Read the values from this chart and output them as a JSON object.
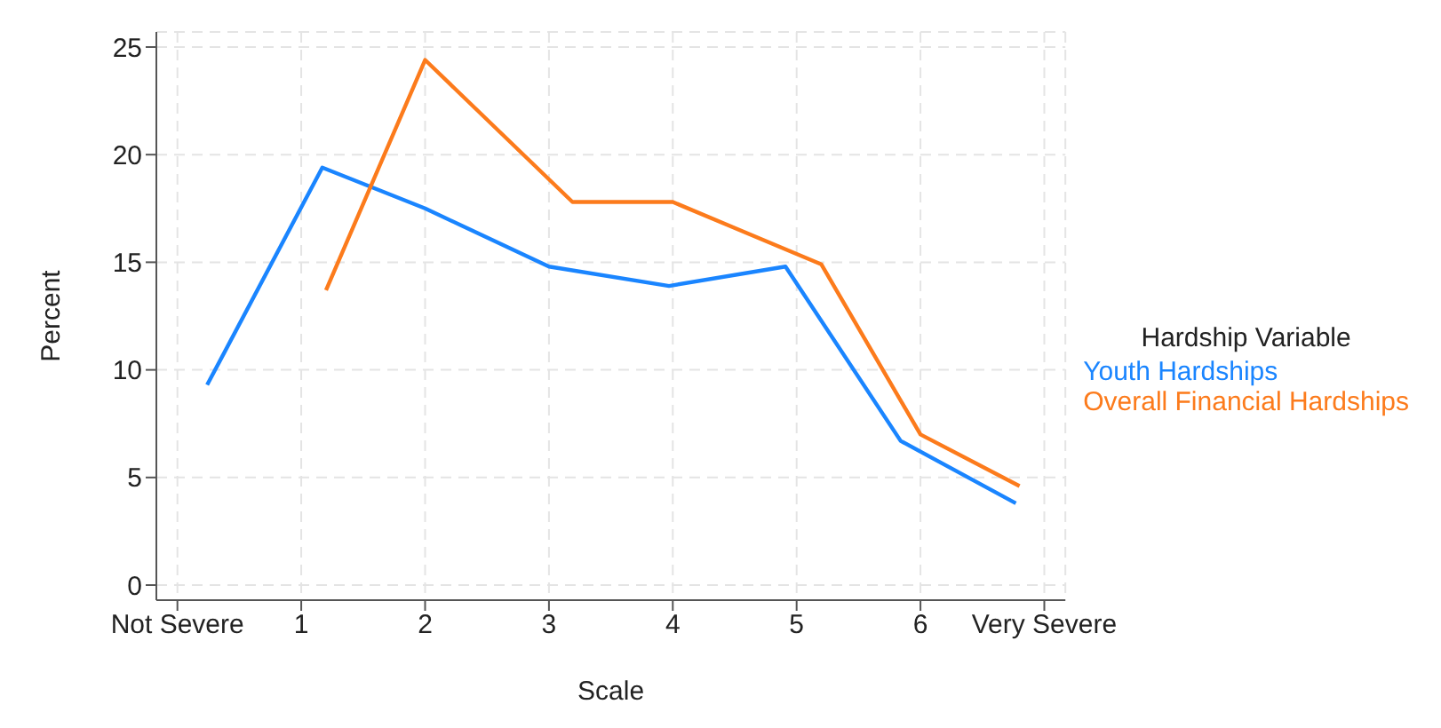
{
  "chart_data": {
    "type": "line",
    "xlabel": "Scale",
    "ylabel": "Percent",
    "legend_title": "Hardship Variable",
    "legend": "right",
    "grid": true,
    "marker": "none",
    "line_style": "solid",
    "xlim": [
      -0.17,
      7.17
    ],
    "ylim": [
      -0.7,
      25.7
    ],
    "xticks": [
      {
        "value": 0,
        "label": "Not Severe"
      },
      1,
      2,
      3,
      4,
      5,
      6,
      {
        "value": 7,
        "label": "Very Severe"
      }
    ],
    "yticks": [
      0,
      5,
      10,
      15,
      20,
      25
    ],
    "series": [
      {
        "name": "Youth Hardships",
        "color": "#1a85ff",
        "x": [
          0.24,
          1.17,
          2,
          3,
          3.97,
          4.91,
          5.84,
          6.77
        ],
        "values": [
          9.3,
          19.4,
          17.5,
          14.8,
          13.9,
          14.8,
          6.7,
          3.8
        ]
      },
      {
        "name": "Overall Financial Hardships",
        "color": "#fc7b1c",
        "x": [
          1.2,
          2,
          3.19,
          4,
          5.2,
          6,
          6.8
        ],
        "values": [
          13.7,
          24.4,
          17.8,
          17.8,
          14.9,
          7.0,
          4.6
        ]
      }
    ]
  }
}
